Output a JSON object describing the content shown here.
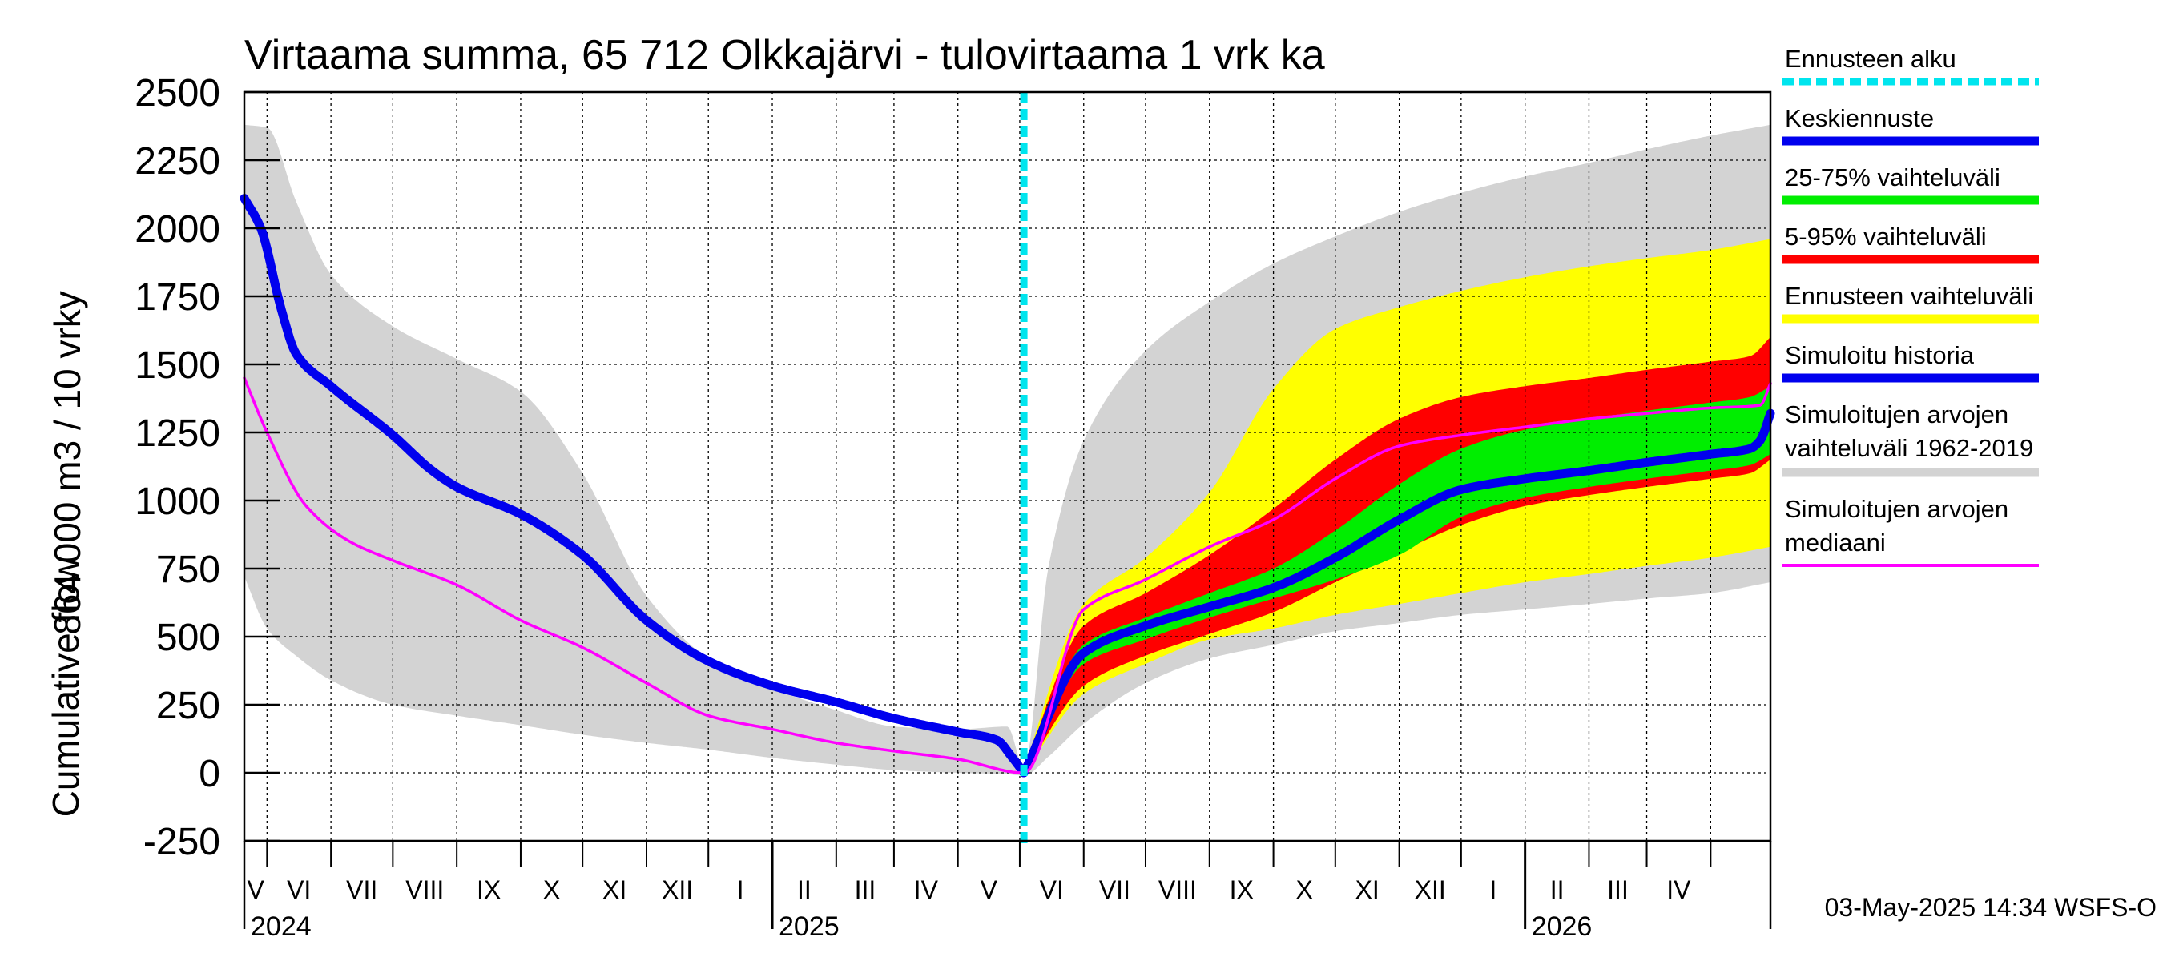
{
  "chart_data": {
    "type": "area",
    "title": "Virtaama summa, 65 712 Olkkajärvi - tulovirtaama 1 vrk ka",
    "ylabel_line1": "864 000 m3 / 10 vrky",
    "ylabel_line2": "Cumulative flow",
    "ylim": [
      -250,
      2500
    ],
    "yticks": [
      "2500",
      "2250",
      "2000",
      "1750",
      "1500",
      "1250",
      "1000",
      "750",
      "500",
      "250",
      "0",
      "-250"
    ],
    "x_start": "2024-04-20",
    "x_end": "2026-04-30",
    "forecast_start": "2025-05-03",
    "months": [
      "V",
      "VI",
      "VII",
      "VIII",
      "IX",
      "X",
      "XI",
      "XII",
      "I",
      "II",
      "III",
      "IV",
      "V",
      "VI",
      "VII",
      "VIII",
      "IX",
      "X",
      "XI",
      "XII",
      "I",
      "II",
      "III",
      "IV"
    ],
    "years": [
      "2024",
      "2025",
      "2026"
    ],
    "grid": true,
    "legend_position": "right",
    "series": [
      {
        "name": "Simuloitujen arvojen vaihteluväli 1962-2019",
        "color": "#d3d3d3",
        "x": [
          "2024-04-20",
          "2024-05-01",
          "2024-05-15",
          "2024-06-01",
          "2024-07-01",
          "2024-08-01",
          "2024-09-01",
          "2024-10-01",
          "2024-11-01",
          "2024-12-01",
          "2025-01-01",
          "2025-02-01",
          "2025-03-01",
          "2025-04-01",
          "2025-04-25",
          "2025-05-03",
          "2025-05-15",
          "2025-06-01",
          "2025-07-01",
          "2025-08-01",
          "2025-09-01",
          "2025-10-01",
          "2025-11-01",
          "2025-12-01",
          "2026-01-01",
          "2026-02-01",
          "2026-03-01",
          "2026-04-01",
          "2026-04-30"
        ],
        "upper": [
          2380,
          2370,
          2100,
          1830,
          1640,
          1520,
          1400,
          1100,
          650,
          420,
          310,
          230,
          170,
          160,
          170,
          20,
          760,
          1220,
          1550,
          1730,
          1870,
          1970,
          2060,
          2130,
          2190,
          2240,
          2290,
          2340,
          2380
        ],
        "lower": [
          720,
          530,
          430,
          340,
          250,
          210,
          175,
          140,
          110,
          85,
          55,
          30,
          10,
          0,
          -5,
          -10,
          60,
          180,
          330,
          420,
          470,
          520,
          550,
          580,
          600,
          620,
          640,
          660,
          700
        ]
      },
      {
        "name": "Ennusteen vaihteluväli",
        "color": "#ffff00",
        "x": [
          "2025-05-03",
          "2025-06-01",
          "2025-07-01",
          "2025-08-01",
          "2025-09-01",
          "2025-10-01",
          "2025-11-01",
          "2025-12-01",
          "2026-01-01",
          "2026-02-01",
          "2026-03-01",
          "2026-04-01",
          "2026-04-30"
        ],
        "upper": [
          20,
          620,
          790,
          1030,
          1410,
          1630,
          1710,
          1770,
          1820,
          1860,
          1890,
          1920,
          1960
        ],
        "lower": [
          0,
          290,
          400,
          490,
          530,
          580,
          620,
          660,
          700,
          730,
          760,
          790,
          830
        ]
      },
      {
        "name": "5-95% vaihteluväli",
        "color": "#ff0000",
        "x": [
          "2025-05-03",
          "2025-06-01",
          "2025-07-01",
          "2025-08-01",
          "2025-09-01",
          "2025-10-01",
          "2025-11-01",
          "2025-12-01",
          "2026-01-01",
          "2026-02-01",
          "2026-03-01",
          "2026-04-01",
          "2026-04-20",
          "2026-04-30"
        ],
        "upper": [
          20,
          540,
          660,
          800,
          970,
          1150,
          1300,
          1380,
          1420,
          1450,
          1480,
          1510,
          1530,
          1600
        ],
        "lower": [
          0,
          320,
          430,
          510,
          590,
          700,
          810,
          910,
          980,
          1020,
          1050,
          1080,
          1100,
          1150
        ]
      },
      {
        "name": "25-75% vaihteluväli",
        "color": "#00ee00",
        "x": [
          "2025-05-03",
          "2025-06-01",
          "2025-07-01",
          "2025-08-01",
          "2025-09-01",
          "2025-10-01",
          "2025-11-01",
          "2025-12-01",
          "2026-01-01",
          "2026-02-01",
          "2026-03-01",
          "2026-04-01",
          "2026-04-20",
          "2026-04-30"
        ],
        "upper": [
          15,
          470,
          570,
          660,
          750,
          890,
          1060,
          1190,
          1260,
          1300,
          1330,
          1360,
          1380,
          1420
        ],
        "lower": [
          0,
          400,
          490,
          570,
          640,
          710,
          800,
          940,
          1010,
          1050,
          1080,
          1110,
          1130,
          1170
        ]
      },
      {
        "name": "Keskiennuste",
        "color": "#0000ee",
        "x": [
          "2025-05-03",
          "2025-06-01",
          "2025-07-01",
          "2025-08-01",
          "2025-09-01",
          "2025-10-01",
          "2025-11-01",
          "2025-12-01",
          "2026-01-01",
          "2026-02-01",
          "2026-03-01",
          "2026-04-01",
          "2026-04-20",
          "2026-04-25",
          "2026-04-30"
        ],
        "values": [
          0,
          440,
          540,
          610,
          680,
          790,
          930,
          1040,
          1080,
          1110,
          1140,
          1170,
          1190,
          1220,
          1320
        ]
      },
      {
        "name": "Simuloitu historia",
        "color": "#0000ee",
        "x": [
          "2024-04-20",
          "2024-04-28",
          "2024-05-08",
          "2024-05-15",
          "2024-06-01",
          "2024-07-01",
          "2024-07-20",
          "2024-08-01",
          "2024-09-01",
          "2024-10-01",
          "2024-11-01",
          "2024-12-01",
          "2025-01-01",
          "2025-02-01",
          "2025-03-01",
          "2025-04-01",
          "2025-04-20",
          "2025-04-27",
          "2025-05-03"
        ],
        "values": [
          2110,
          2000,
          1700,
          1540,
          1420,
          1240,
          1110,
          1050,
          950,
          800,
          560,
          410,
          320,
          260,
          200,
          150,
          120,
          60,
          0
        ]
      },
      {
        "name": "Simuloitujen arvojen mediaani",
        "color": "#ff00ff",
        "x": [
          "2024-04-20",
          "2024-05-01",
          "2024-05-20",
          "2024-06-10",
          "2024-07-01",
          "2024-08-01",
          "2024-09-01",
          "2024-10-01",
          "2024-11-01",
          "2024-12-01",
          "2025-01-01",
          "2025-02-01",
          "2025-03-01",
          "2025-04-01",
          "2025-05-03",
          "2025-06-01",
          "2025-07-01",
          "2025-08-01",
          "2025-09-01",
          "2025-10-01",
          "2025-11-01",
          "2025-12-01",
          "2026-01-01",
          "2026-02-01",
          "2026-03-01",
          "2026-04-01",
          "2026-04-25",
          "2026-04-30"
        ],
        "values": [
          1450,
          1250,
          980,
          850,
          780,
          690,
          560,
          460,
          330,
          210,
          160,
          110,
          80,
          50,
          0,
          600,
          710,
          830,
          930,
          1080,
          1200,
          1240,
          1270,
          1300,
          1320,
          1340,
          1350,
          1430
        ]
      }
    ]
  },
  "legend": {
    "forecast_start": "Ennusteen alku",
    "mean_forecast": "Keskiennuste",
    "range_25_75": "25-75% vaihteluväli",
    "range_5_95": "5-95% vaihteluväli",
    "forecast_range": "Ennusteen vaihteluväli",
    "simulated_history": "Simuloitu historia",
    "sim_range_line1": "Simuloitujen arvojen",
    "sim_range_line2": "vaihteluväli 1962-2019",
    "sim_median_line1": "Simuloitujen arvojen",
    "sim_median_line2": "mediaani"
  },
  "colors": {
    "forecast_start": "#00e5ee",
    "mean_forecast": "#0000ee",
    "range_25_75": "#00ee00",
    "range_5_95": "#ff0000",
    "forecast_range": "#ffff00",
    "simulated_history": "#0000ee",
    "sim_range": "#d3d3d3",
    "sim_median": "#ff00ff"
  },
  "footer": "03-May-2025 14:34 WSFS-O"
}
